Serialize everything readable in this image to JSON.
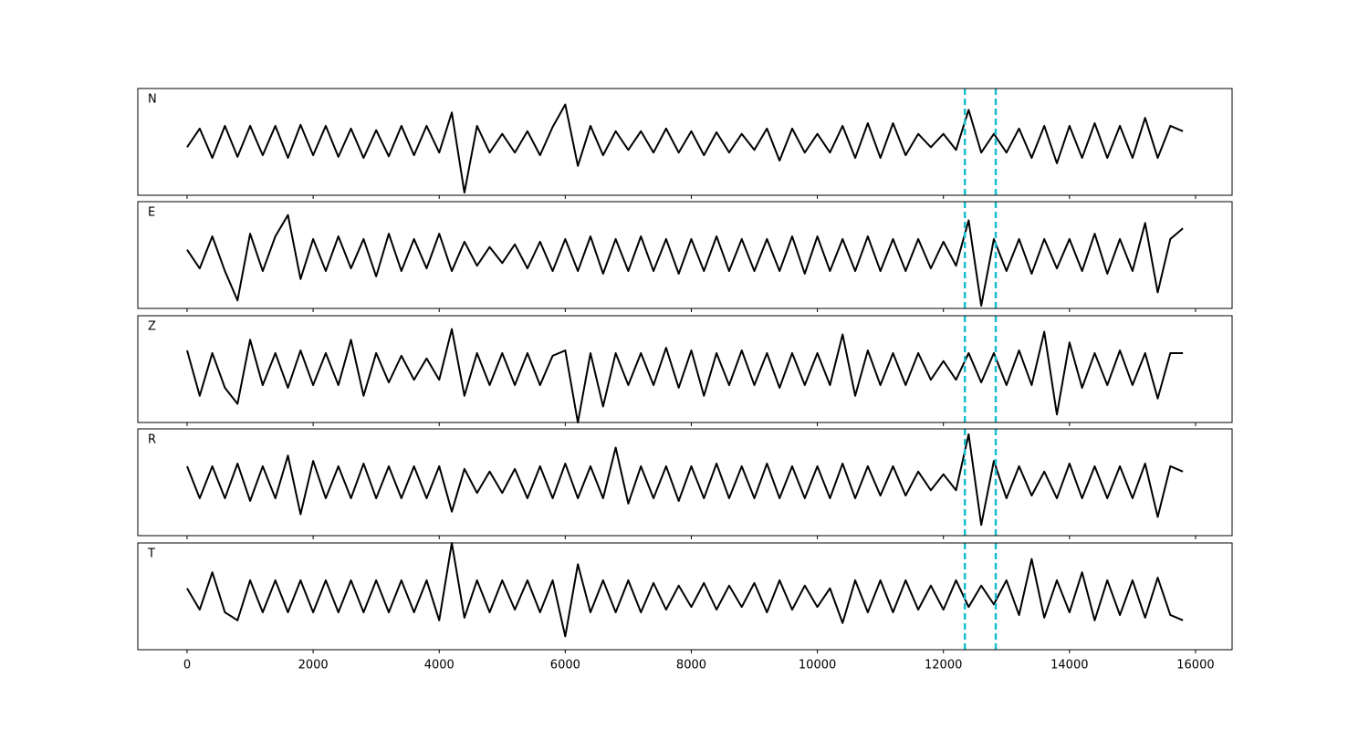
{
  "chart_data": [
    {
      "type": "line",
      "label": "N",
      "xlim": [
        -782,
        16580
      ],
      "ylim": [
        -1,
        1
      ],
      "vlines": [
        12340,
        12830
      ],
      "vline_color": "#17becf",
      "x": [
        0,
        200,
        400,
        600,
        800,
        1000,
        1200,
        1400,
        1600,
        1800,
        2000,
        2200,
        2400,
        2600,
        2800,
        3000,
        3200,
        3400,
        3600,
        3800,
        4000,
        4200,
        4400,
        4600,
        4800,
        5000,
        5200,
        5400,
        5600,
        5800,
        6000,
        6200,
        6400,
        6600,
        6800,
        7000,
        7200,
        7400,
        7600,
        7800,
        8000,
        8200,
        8400,
        8600,
        8800,
        9000,
        9200,
        9400,
        9600,
        9800,
        10000,
        10200,
        10400,
        10600,
        10800,
        11000,
        11200,
        11400,
        11600,
        11800,
        12000,
        12200,
        12400,
        12600,
        12800,
        13000,
        13200,
        13400,
        13600,
        13800,
        14000,
        14200,
        14400,
        14600,
        14800,
        15000,
        15200,
        15400,
        15600,
        15800
      ],
      "series": [
        {
          "color": "#000000",
          "values": [
            -0.1,
            0.25,
            -0.3,
            0.3,
            -0.28,
            0.3,
            -0.25,
            0.3,
            -0.3,
            0.32,
            -0.25,
            0.3,
            -0.28,
            0.25,
            -0.3,
            0.22,
            -0.27,
            0.3,
            -0.25,
            0.3,
            -0.2,
            0.55,
            -0.95,
            0.3,
            -0.2,
            0.15,
            -0.2,
            0.2,
            -0.25,
            0.28,
            0.7,
            -0.45,
            0.3,
            -0.25,
            0.2,
            -0.15,
            0.2,
            -0.2,
            0.25,
            -0.2,
            0.2,
            -0.25,
            0.18,
            -0.2,
            0.15,
            -0.15,
            0.25,
            -0.35,
            0.25,
            -0.2,
            0.15,
            -0.2,
            0.3,
            -0.3,
            0.35,
            -0.3,
            0.35,
            -0.25,
            0.15,
            -0.1,
            0.15,
            -0.15,
            0.6,
            -0.2,
            0.15,
            -0.2,
            0.25,
            -0.3,
            0.3,
            -0.4,
            0.3,
            -0.3,
            0.35,
            -0.3,
            0.3,
            -0.3,
            0.45,
            -0.3,
            0.3,
            0.2
          ]
        }
      ]
    },
    {
      "type": "line",
      "label": "E",
      "xlim": [
        -782,
        16580
      ],
      "ylim": [
        -1,
        1
      ],
      "vlines": [
        12340,
        12830
      ],
      "vline_color": "#17becf",
      "x": [
        0,
        200,
        400,
        600,
        800,
        1000,
        1200,
        1400,
        1600,
        1800,
        2000,
        2200,
        2400,
        2600,
        2800,
        3000,
        3200,
        3400,
        3600,
        3800,
        4000,
        4200,
        4400,
        4600,
        4800,
        5000,
        5200,
        5400,
        5600,
        5800,
        6000,
        6200,
        6400,
        6600,
        6800,
        7000,
        7200,
        7400,
        7600,
        7800,
        8000,
        8200,
        8400,
        8600,
        8800,
        9000,
        9200,
        9400,
        9600,
        9800,
        10000,
        10200,
        10400,
        10600,
        10800,
        11000,
        11200,
        11400,
        11600,
        11800,
        12000,
        12200,
        12400,
        12600,
        12800,
        13000,
        13200,
        13400,
        13600,
        13800,
        14000,
        14200,
        14400,
        14600,
        14800,
        15000,
        15200,
        15400,
        15600,
        15800
      ],
      "series": [
        {
          "color": "#000000",
          "values": [
            0.1,
            -0.25,
            0.35,
            -0.3,
            -0.85,
            0.4,
            -0.3,
            0.35,
            0.75,
            -0.45,
            0.3,
            -0.3,
            0.35,
            -0.25,
            0.3,
            -0.4,
            0.4,
            -0.3,
            0.3,
            -0.25,
            0.4,
            -0.3,
            0.25,
            -0.2,
            0.15,
            -0.15,
            0.2,
            -0.25,
            0.25,
            -0.3,
            0.3,
            -0.3,
            0.35,
            -0.35,
            0.3,
            -0.3,
            0.35,
            -0.3,
            0.3,
            -0.35,
            0.3,
            -0.3,
            0.35,
            -0.3,
            0.3,
            -0.3,
            0.3,
            -0.3,
            0.35,
            -0.35,
            0.35,
            -0.3,
            0.3,
            -0.3,
            0.35,
            -0.3,
            0.3,
            -0.3,
            0.3,
            -0.25,
            0.25,
            -0.2,
            0.65,
            -0.95,
            0.3,
            -0.3,
            0.3,
            -0.35,
            0.3,
            -0.25,
            0.3,
            -0.3,
            0.4,
            -0.35,
            0.3,
            -0.3,
            0.6,
            -0.7,
            0.3,
            0.5
          ]
        }
      ]
    },
    {
      "type": "line",
      "label": "Z",
      "xlim": [
        -782,
        16580
      ],
      "ylim": [
        -1,
        1
      ],
      "vlines": [
        12340,
        12830
      ],
      "vline_color": "#17becf",
      "x": [
        0,
        200,
        400,
        600,
        800,
        1000,
        1200,
        1400,
        1600,
        1800,
        2000,
        2200,
        2400,
        2600,
        2800,
        3000,
        3200,
        3400,
        3600,
        3800,
        4000,
        4200,
        4400,
        4600,
        4800,
        5000,
        5200,
        5400,
        5600,
        5800,
        6000,
        6200,
        6400,
        6600,
        6800,
        7000,
        7200,
        7400,
        7600,
        7800,
        8000,
        8200,
        8400,
        8600,
        8800,
        9000,
        9200,
        9400,
        9600,
        9800,
        10000,
        10200,
        10400,
        10600,
        10800,
        11000,
        11200,
        11400,
        11600,
        11800,
        12000,
        12200,
        12400,
        12600,
        12800,
        13000,
        13200,
        13400,
        13600,
        13800,
        14000,
        14200,
        14400,
        14600,
        14800,
        15000,
        15200,
        15400,
        15600,
        15800
      ],
      "series": [
        {
          "color": "#000000",
          "values": [
            0.35,
            -0.5,
            0.3,
            -0.35,
            -0.65,
            0.55,
            -0.3,
            0.3,
            -0.35,
            0.35,
            -0.3,
            0.3,
            -0.3,
            0.55,
            -0.5,
            0.3,
            -0.25,
            0.25,
            -0.2,
            0.2,
            -0.2,
            0.75,
            -0.5,
            0.3,
            -0.3,
            0.3,
            -0.3,
            0.3,
            -0.3,
            0.25,
            0.35,
            -1.0,
            0.3,
            -0.7,
            0.3,
            -0.3,
            0.3,
            -0.3,
            0.4,
            -0.35,
            0.35,
            -0.5,
            0.3,
            -0.3,
            0.35,
            -0.3,
            0.3,
            -0.35,
            0.3,
            -0.3,
            0.3,
            -0.3,
            0.65,
            -0.5,
            0.35,
            -0.3,
            0.3,
            -0.3,
            0.3,
            -0.2,
            0.15,
            -0.2,
            0.3,
            -0.25,
            0.3,
            -0.3,
            0.35,
            -0.3,
            0.7,
            -0.85,
            0.5,
            -0.35,
            0.3,
            -0.3,
            0.35,
            -0.3,
            0.3,
            -0.55,
            0.3,
            0.3
          ]
        }
      ]
    },
    {
      "type": "line",
      "label": "R",
      "xlim": [
        -782,
        16580
      ],
      "ylim": [
        -1,
        1
      ],
      "vlines": [
        12340,
        12830
      ],
      "vline_color": "#17becf",
      "x": [
        0,
        200,
        400,
        600,
        800,
        1000,
        1200,
        1400,
        1600,
        1800,
        2000,
        2200,
        2400,
        2600,
        2800,
        3000,
        3200,
        3400,
        3600,
        3800,
        4000,
        4200,
        4400,
        4600,
        4800,
        5000,
        5200,
        5400,
        5600,
        5800,
        6000,
        6200,
        6400,
        6600,
        6800,
        7000,
        7200,
        7400,
        7600,
        7800,
        8000,
        8200,
        8400,
        8600,
        8800,
        9000,
        9200,
        9400,
        9600,
        9800,
        10000,
        10200,
        10400,
        10600,
        10800,
        11000,
        11200,
        11400,
        11600,
        11800,
        12000,
        12200,
        12400,
        12600,
        12800,
        13000,
        13200,
        13400,
        13600,
        13800,
        14000,
        14200,
        14400,
        14600,
        14800,
        15000,
        15200,
        15400,
        15600,
        15800
      ],
      "series": [
        {
          "color": "#000000",
          "values": [
            0.3,
            -0.3,
            0.3,
            -0.3,
            0.35,
            -0.35,
            0.3,
            -0.3,
            0.5,
            -0.6,
            0.4,
            -0.3,
            0.3,
            -0.3,
            0.35,
            -0.3,
            0.3,
            -0.3,
            0.3,
            -0.3,
            0.3,
            -0.55,
            0.25,
            -0.2,
            0.2,
            -0.2,
            0.25,
            -0.3,
            0.3,
            -0.3,
            0.35,
            -0.3,
            0.3,
            -0.3,
            0.65,
            -0.4,
            0.3,
            -0.3,
            0.3,
            -0.35,
            0.3,
            -0.3,
            0.35,
            -0.3,
            0.3,
            -0.3,
            0.35,
            -0.3,
            0.3,
            -0.3,
            0.3,
            -0.3,
            0.35,
            -0.3,
            0.3,
            -0.25,
            0.3,
            -0.25,
            0.2,
            -0.15,
            0.15,
            -0.15,
            0.9,
            -0.8,
            0.4,
            -0.3,
            0.3,
            -0.25,
            0.2,
            -0.3,
            0.35,
            -0.3,
            0.3,
            -0.3,
            0.3,
            -0.3,
            0.35,
            -0.65,
            0.3,
            0.2
          ]
        }
      ]
    },
    {
      "type": "line",
      "label": "T",
      "xlim": [
        -782,
        16580
      ],
      "ylim": [
        -1,
        1
      ],
      "vlines": [
        12340,
        12830
      ],
      "vline_color": "#17becf",
      "xticks": [
        0,
        2000,
        4000,
        6000,
        8000,
        10000,
        12000,
        14000,
        16000
      ],
      "x": [
        0,
        200,
        400,
        600,
        800,
        1000,
        1200,
        1400,
        1600,
        1800,
        2000,
        2200,
        2400,
        2600,
        2800,
        3000,
        3200,
        3400,
        3600,
        3800,
        4000,
        4200,
        4400,
        4600,
        4800,
        5000,
        5200,
        5400,
        5600,
        5800,
        6000,
        6200,
        6400,
        6600,
        6800,
        7000,
        7200,
        7400,
        7600,
        7800,
        8000,
        8200,
        8400,
        8600,
        8800,
        9000,
        9200,
        9400,
        9600,
        9800,
        10000,
        10200,
        10400,
        10600,
        10800,
        11000,
        11200,
        11400,
        11600,
        11800,
        12000,
        12200,
        12400,
        12600,
        12800,
        13000,
        13200,
        13400,
        13600,
        13800,
        14000,
        14200,
        14400,
        14600,
        14800,
        15000,
        15200,
        15400,
        15600,
        15800
      ],
      "series": [
        {
          "color": "#000000",
          "values": [
            0.15,
            -0.25,
            0.45,
            -0.3,
            -0.45,
            0.3,
            -0.3,
            0.3,
            -0.3,
            0.3,
            -0.3,
            0.3,
            -0.3,
            0.3,
            -0.3,
            0.3,
            -0.3,
            0.3,
            -0.3,
            0.3,
            -0.45,
            1.0,
            -0.4,
            0.3,
            -0.3,
            0.3,
            -0.25,
            0.3,
            -0.3,
            0.3,
            -0.75,
            0.6,
            -0.3,
            0.3,
            -0.3,
            0.3,
            -0.3,
            0.25,
            -0.25,
            0.2,
            -0.2,
            0.25,
            -0.25,
            0.2,
            -0.2,
            0.25,
            -0.3,
            0.3,
            -0.25,
            0.2,
            -0.2,
            0.15,
            -0.5,
            0.3,
            -0.3,
            0.3,
            -0.3,
            0.3,
            -0.25,
            0.2,
            -0.25,
            0.3,
            -0.2,
            0.2,
            -0.15,
            0.3,
            -0.35,
            0.7,
            -0.4,
            0.3,
            -0.3,
            0.45,
            -0.45,
            0.3,
            -0.35,
            0.3,
            -0.4,
            0.35,
            -0.35,
            -0.45
          ]
        }
      ]
    }
  ]
}
